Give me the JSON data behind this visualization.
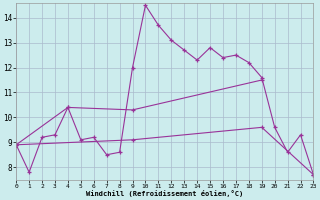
{
  "xlabel": "Windchill (Refroidissement éolien,°C)",
  "bg_color": "#cceced",
  "line_color": "#993399",
  "grid_color": "#aabbcc",
  "xlim": [
    0,
    23
  ],
  "ylim": [
    7.5,
    14.6
  ],
  "xticks": [
    0,
    1,
    2,
    3,
    4,
    5,
    6,
    7,
    8,
    9,
    10,
    11,
    12,
    13,
    14,
    15,
    16,
    17,
    18,
    19,
    20,
    21,
    22,
    23
  ],
  "yticks": [
    8,
    9,
    10,
    11,
    12,
    13,
    14
  ],
  "series_main": [
    [
      0,
      8.9
    ],
    [
      1,
      7.8
    ],
    [
      2,
      9.2
    ],
    [
      3,
      9.3
    ],
    [
      4,
      10.4
    ],
    [
      5,
      9.1
    ],
    [
      6,
      9.2
    ],
    [
      7,
      8.5
    ],
    [
      8,
      8.6
    ],
    [
      9,
      12.0
    ],
    [
      10,
      14.5
    ],
    [
      11,
      13.7
    ],
    [
      12,
      13.1
    ],
    [
      13,
      12.7
    ],
    [
      14,
      12.3
    ],
    [
      15,
      12.8
    ],
    [
      16,
      12.4
    ],
    [
      17,
      12.5
    ],
    [
      18,
      12.2
    ],
    [
      19,
      11.6
    ],
    [
      20,
      9.6
    ],
    [
      21,
      8.6
    ],
    [
      22,
      9.3
    ],
    [
      23,
      7.7
    ]
  ],
  "series_up": [
    [
      0,
      8.9
    ],
    [
      4,
      10.4
    ],
    [
      9,
      10.3
    ],
    [
      19,
      11.5
    ]
  ],
  "series_down": [
    [
      0,
      8.9
    ],
    [
      9,
      9.1
    ],
    [
      19,
      9.6
    ],
    [
      23,
      7.7
    ]
  ]
}
